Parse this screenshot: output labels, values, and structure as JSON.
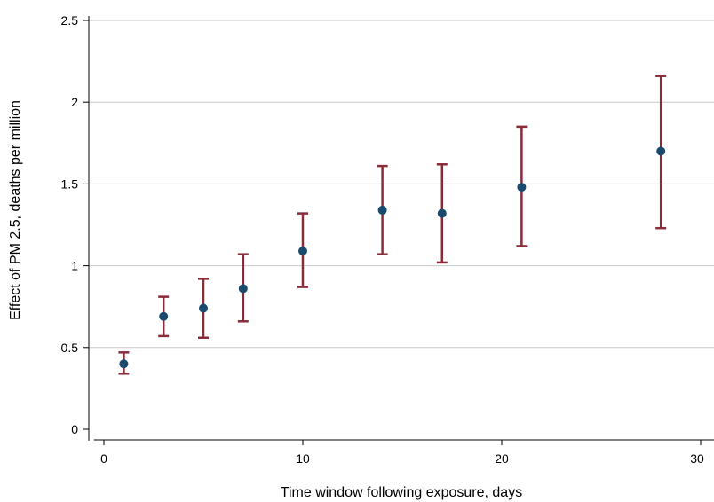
{
  "chart_data": {
    "type": "scatter",
    "title": "",
    "xlabel": "Time window following exposure, days",
    "ylabel": "Effect of PM 2.5, deaths per million",
    "xlim": [
      -0.5,
      30.5
    ],
    "ylim": [
      -0.07,
      2.6
    ],
    "xticks": [
      0,
      10,
      20,
      30
    ],
    "xtick_labels": [
      "0",
      "10",
      "20",
      "30"
    ],
    "yticks": [
      0,
      0.5,
      1,
      1.5,
      2,
      2.5
    ],
    "ytick_labels": [
      "0",
      "0.5",
      "1",
      "1.5",
      "2",
      "2.5"
    ],
    "grid": "horizontal",
    "legend": "none",
    "series": [
      {
        "x": [
          1,
          3,
          5,
          7,
          10,
          14,
          17,
          21,
          28
        ],
        "y": [
          0.4,
          0.69,
          0.74,
          0.86,
          1.09,
          1.34,
          1.32,
          1.48,
          1.7
        ],
        "lower": [
          0.34,
          0.57,
          0.56,
          0.66,
          0.87,
          1.07,
          1.02,
          1.12,
          1.23
        ],
        "upper": [
          0.47,
          0.81,
          0.92,
          1.07,
          1.32,
          1.61,
          1.62,
          1.85,
          2.16
        ]
      }
    ],
    "colors": {
      "point": "#1a4a6e",
      "errorbar": "#8b2b3a",
      "grid": "#c8c8c8",
      "axis": "#000000"
    }
  }
}
